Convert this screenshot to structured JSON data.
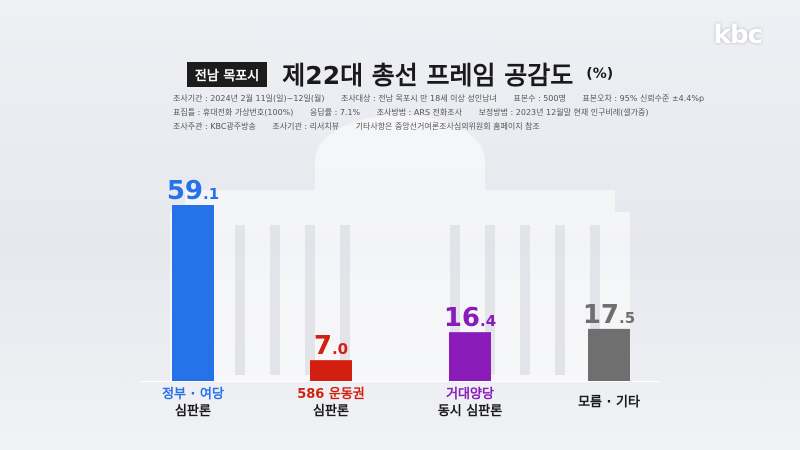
{
  "logo": "kbc",
  "title": {
    "region": "전남 목포시",
    "main": "제22대 총선 프레임 공감도",
    "unit": "(%)"
  },
  "survey_meta": {
    "rows": [
      [
        "조사기간 : 2024년 2월 11일(일)~12일(월)",
        "조사대상 : 전남 목포시 만 18세 이상 성인남녀",
        "표본수 : 500명",
        "표본오차 : 95% 신뢰수준 ±4.4%p"
      ],
      [
        "표집틀 : 휴대전화 가상번호(100%)",
        "응답률 : 7.1%",
        "조사방법 : ARS 전화조사",
        "보정방법 : 2023년 12월말 현재 인구비례(셀가중)"
      ],
      [
        "조사주관 : KBC광주방송",
        "조사기관 : 리서치뷰",
        "기타사항은 중앙선거여론조사심의위원회 홈페이지 참조"
      ]
    ]
  },
  "chart_data": {
    "type": "bar",
    "title": "제22대 총선 프레임 공감도",
    "unit": "(%)",
    "categories": [
      {
        "top": "정부 · 여당",
        "bottom": "심판론"
      },
      {
        "top": "586 운동권",
        "bottom": "심판론"
      },
      {
        "top": "거대양당",
        "bottom": "동시 심판론"
      },
      {
        "top": "",
        "bottom": "모름 · 기타"
      }
    ],
    "values": [
      59.1,
      7.0,
      16.4,
      17.5
    ],
    "value_labels": [
      {
        "int": "59",
        "dec": ".1"
      },
      {
        "int": "7",
        "dec": ".0"
      },
      {
        "int": "16",
        "dec": ".4"
      },
      {
        "int": "17",
        "dec": ".5"
      }
    ],
    "colors": [
      "#2672e8",
      "#d21f10",
      "#8a1bb8",
      "#6f6f6f"
    ],
    "ylim": [
      0,
      59.1
    ]
  }
}
